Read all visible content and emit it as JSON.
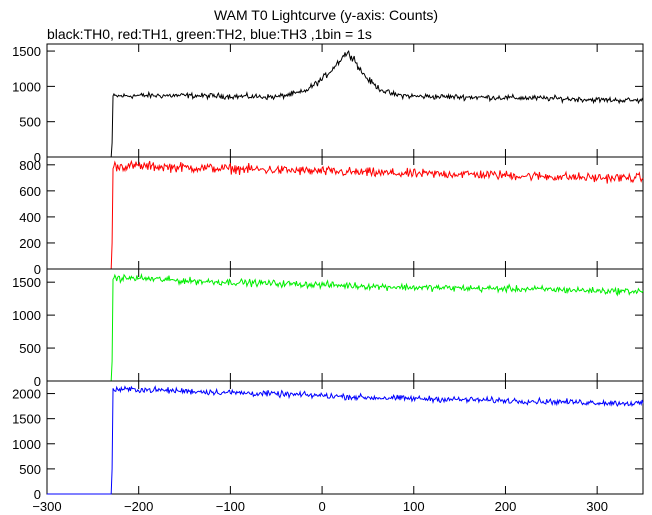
{
  "title": "WAM T0 Lightcurve (y-axis: Counts)",
  "subtitle": "black:TH0, red:TH1, green:TH2, blue:TH3 ,1bin = 1s",
  "chart_data": {
    "type": "line",
    "title": "WAM T0 Lightcurve (y-axis: Counts)",
    "subtitle": "black:TH0, red:TH1, green:TH2, blue:TH3 ,1bin = 1s",
    "xlim": [
      -300,
      350
    ],
    "x_ticks": [
      -300,
      -200,
      -100,
      0,
      100,
      200,
      300
    ],
    "x_tick_labels": [
      "−300",
      "−200",
      "−100",
      "0",
      "100",
      "200",
      "300"
    ],
    "grid": false,
    "legend": "none (series identified in subtitle)",
    "panels": [
      {
        "name": "TH0",
        "color": "#000000",
        "ylim": [
          0,
          1600
        ],
        "y_ticks": [
          0,
          500,
          1000,
          1500
        ],
        "y_tick_labels": [
          "0",
          "500",
          "1000",
          "1500"
        ],
        "x": [
          -300,
          -230,
          -229,
          -228,
          -200,
          -150,
          -100,
          -50,
          -20,
          0,
          10,
          20,
          25,
          30,
          35,
          40,
          50,
          60,
          70,
          80,
          100,
          150,
          200,
          250,
          300,
          350
        ],
        "y": [
          0,
          0,
          200,
          860,
          870,
          870,
          860,
          850,
          920,
          1100,
          1230,
          1380,
          1460,
          1460,
          1400,
          1260,
          1100,
          990,
          920,
          880,
          860,
          850,
          840,
          830,
          810,
          800
        ]
      },
      {
        "name": "TH1",
        "color": "#ff0000",
        "ylim": [
          0,
          860
        ],
        "y_ticks": [
          0,
          200,
          400,
          600,
          800
        ],
        "y_tick_labels": [
          "0",
          "200",
          "400",
          "600",
          "800"
        ],
        "x": [
          -300,
          -230,
          -229,
          -228,
          -200,
          -150,
          -100,
          -50,
          0,
          50,
          100,
          150,
          200,
          250,
          300,
          350
        ],
        "y": [
          0,
          0,
          200,
          790,
          790,
          780,
          770,
          760,
          750,
          740,
          730,
          730,
          720,
          710,
          700,
          700
        ]
      },
      {
        "name": "TH2",
        "color": "#00ee00",
        "ylim": [
          0,
          1700
        ],
        "y_ticks": [
          0,
          500,
          1000,
          1500
        ],
        "y_tick_labels": [
          "0",
          "500",
          "1000",
          "1500"
        ],
        "x": [
          -300,
          -230,
          -229,
          -228,
          -200,
          -150,
          -100,
          -50,
          0,
          50,
          100,
          150,
          200,
          250,
          300,
          350
        ],
        "y": [
          0,
          0,
          300,
          1560,
          1560,
          1520,
          1500,
          1480,
          1460,
          1440,
          1420,
          1410,
          1400,
          1390,
          1370,
          1360
        ]
      },
      {
        "name": "TH3",
        "color": "#0000ff",
        "ylim": [
          0,
          2250
        ],
        "y_ticks": [
          0,
          500,
          1000,
          1500,
          2000
        ],
        "y_tick_labels": [
          "0",
          "500",
          "1000",
          "1500",
          "2000"
        ],
        "x": [
          -300,
          -230,
          -229,
          -228,
          -200,
          -150,
          -100,
          -50,
          0,
          50,
          100,
          150,
          200,
          250,
          300,
          350
        ],
        "y": [
          0,
          0,
          500,
          2080,
          2080,
          2050,
          2020,
          1990,
          1960,
          1920,
          1900,
          1880,
          1860,
          1840,
          1820,
          1800
        ]
      }
    ]
  }
}
